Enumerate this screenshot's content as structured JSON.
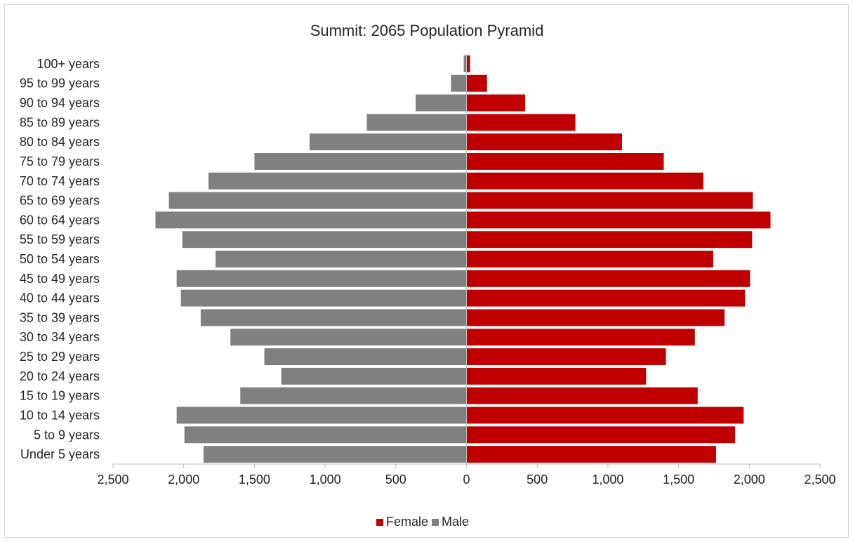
{
  "chart_data": {
    "type": "bar",
    "orientation": "horizontal",
    "title": "Summit: 2065 Population Pyramid",
    "categories": [
      "100+ years",
      "95 to 99 years",
      "90 to 94 years",
      "85 to 89 years",
      "80 to 84 years",
      "75 to 79 years",
      "70 to 74 years",
      "65 to 69 years",
      "60 to 64 years",
      "55 to 59 years",
      "50 to 54 years",
      "45 to 49 years",
      "40 to 44 years",
      "35 to 39 years",
      "30 to 34 years",
      "25 to 29 years",
      "20 to 24 years",
      "15 to 19 years",
      "10 to 14 years",
      "5 to 9 years",
      "Under 5 years"
    ],
    "series": [
      {
        "name": "Female",
        "color": "#c00000",
        "values": [
          25,
          145,
          415,
          770,
          1100,
          1395,
          1675,
          2025,
          2150,
          2020,
          1745,
          2005,
          1970,
          1825,
          1615,
          1410,
          1270,
          1635,
          1960,
          1900,
          1765
        ]
      },
      {
        "name": "Male",
        "color": "#808080",
        "values": [
          20,
          110,
          360,
          705,
          1110,
          1500,
          1825,
          2105,
          2200,
          2010,
          1775,
          2050,
          2020,
          1880,
          1670,
          1430,
          1310,
          1600,
          2050,
          1995,
          1860
        ]
      }
    ],
    "xlim": [
      -2500,
      2500
    ],
    "x_ticks": [
      -2500,
      -2000,
      -1500,
      -1000,
      -500,
      0,
      500,
      1000,
      1500,
      2000,
      2500
    ],
    "x_tick_labels": [
      "2,500",
      "2,000",
      "1,500",
      "1,000",
      "500",
      "0",
      "500",
      "1,000",
      "1,500",
      "2,000",
      "2,500"
    ],
    "grid": false,
    "legend_position": "bottom"
  }
}
